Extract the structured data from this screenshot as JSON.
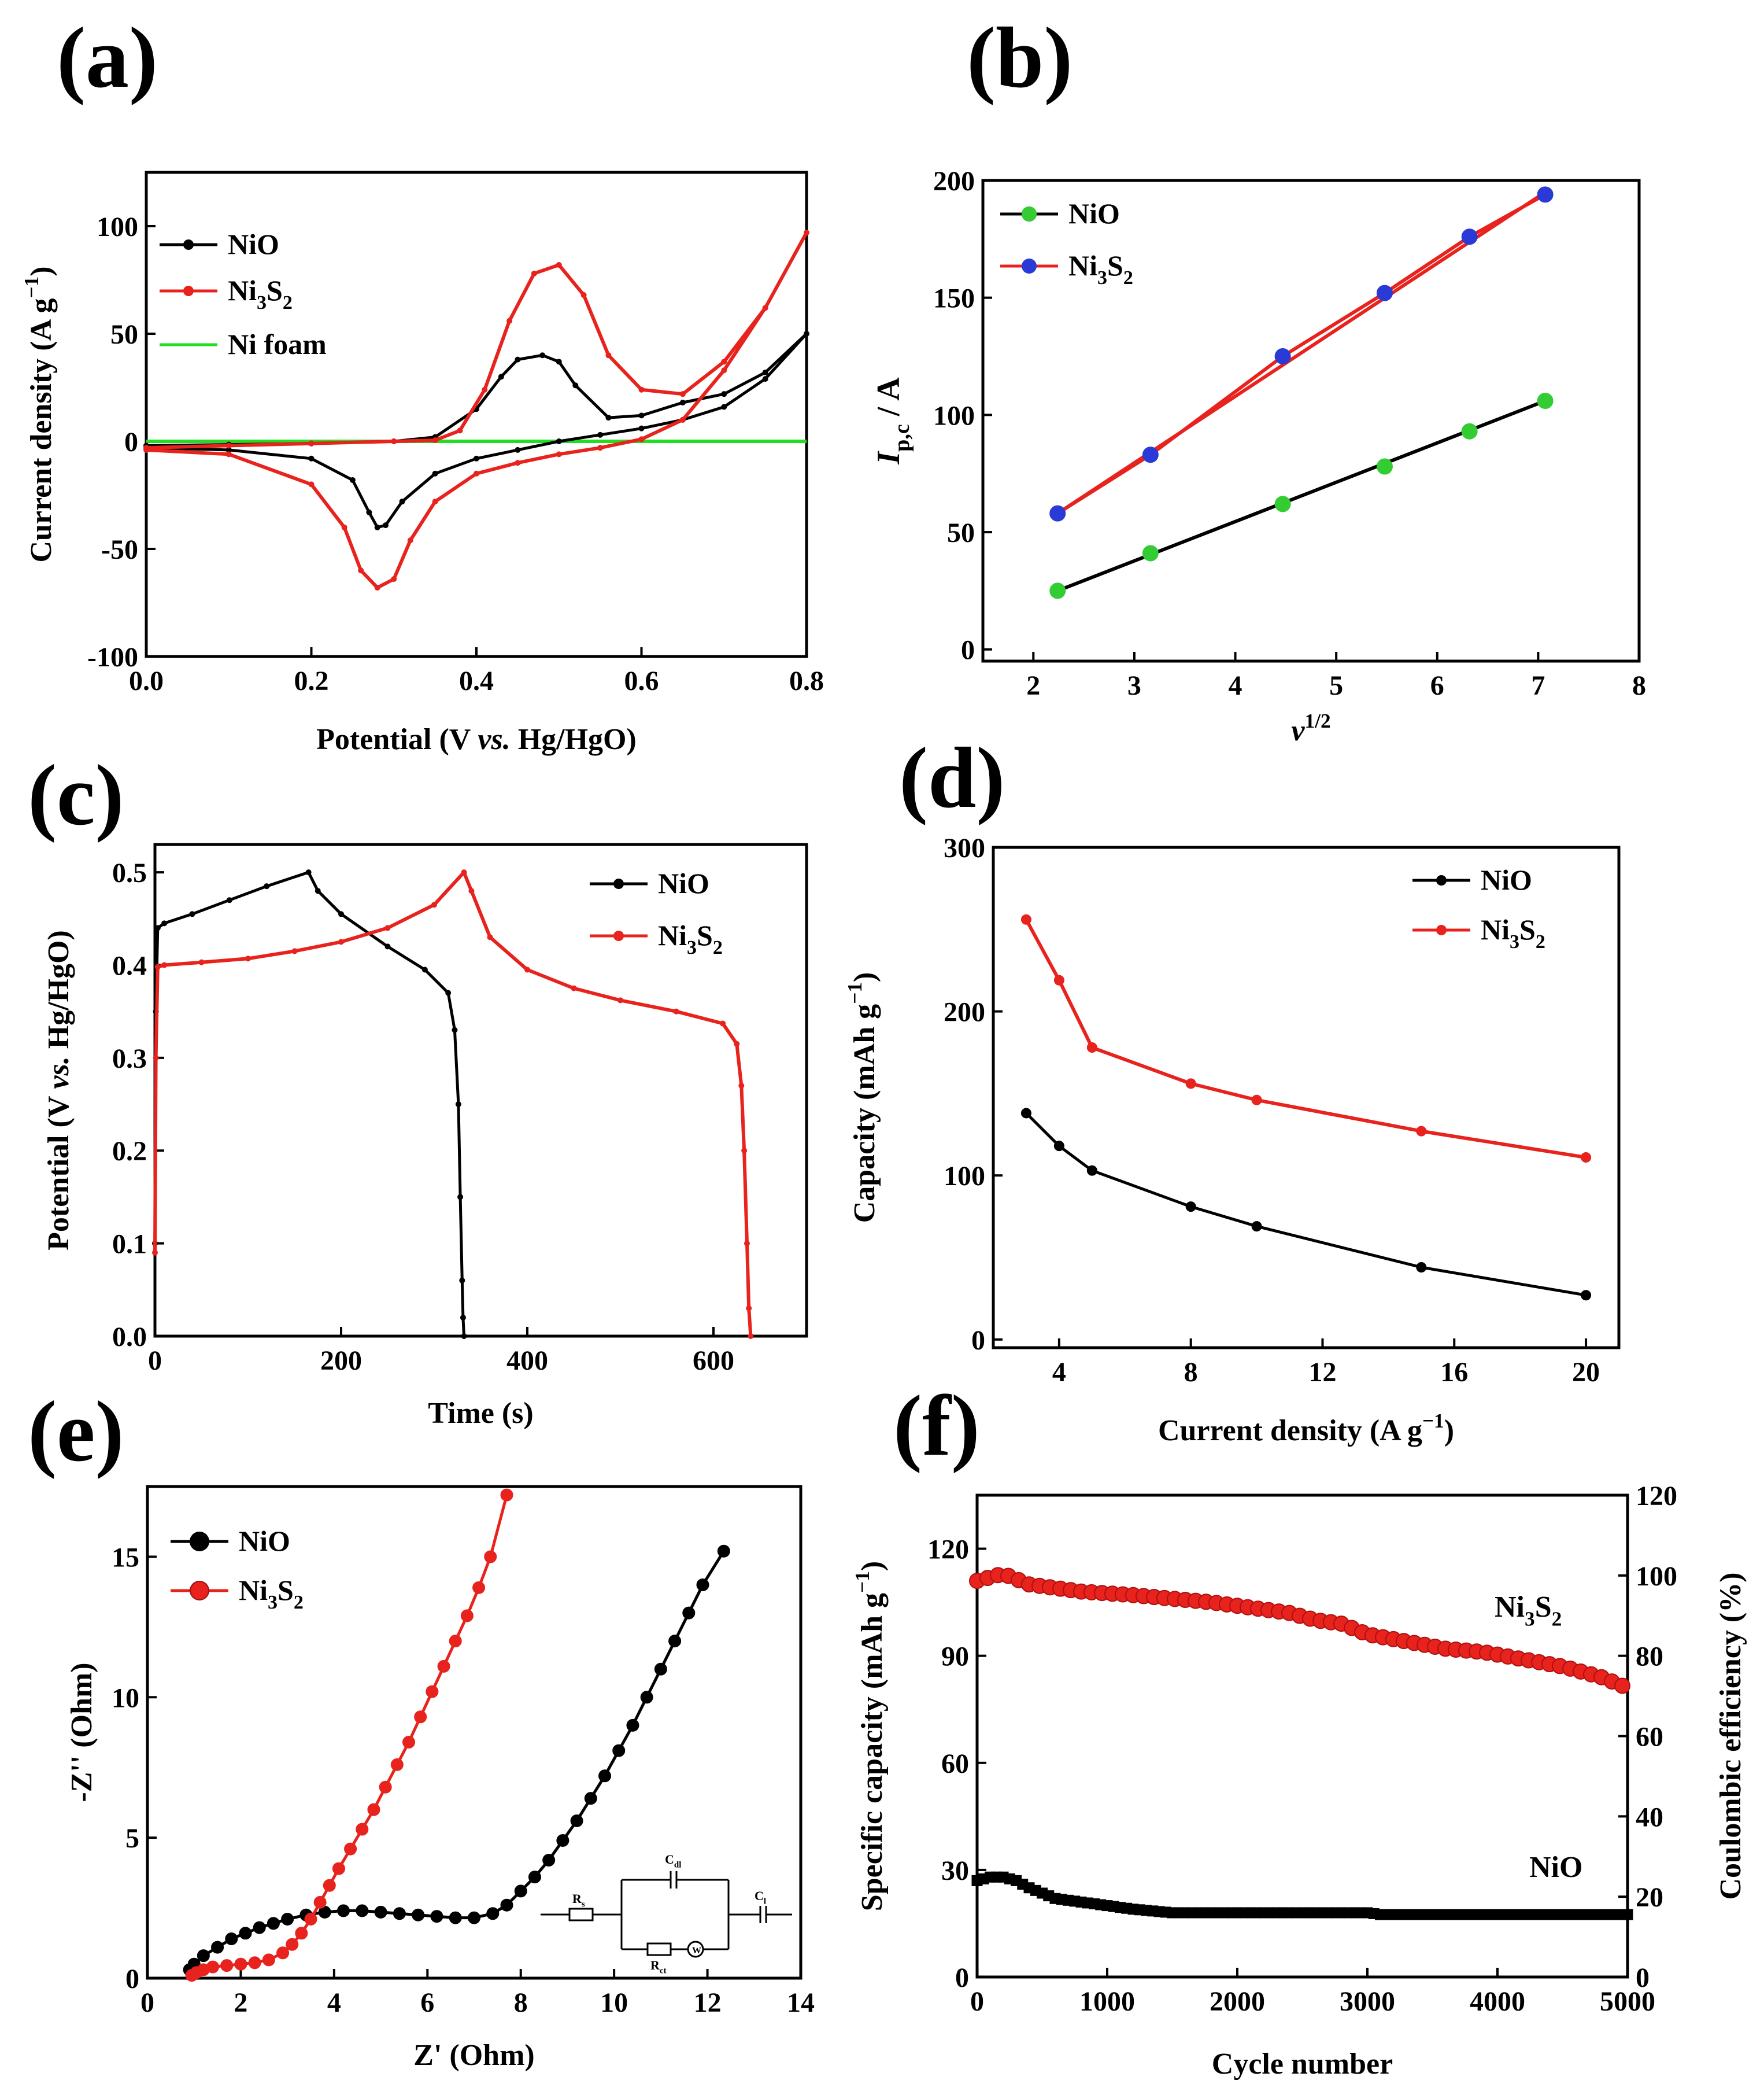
{
  "colors": {
    "nio": "#000000",
    "ni3s2": "#e8221c",
    "foam": "#22dd22",
    "nio_marker_b": "#33cc33",
    "ni3s2_marker_b": "#2a3ad6"
  },
  "chart_data": [
    {
      "panel": "(a)",
      "type": "line",
      "xlabel": "Potential (V vs. Hg/HgO)",
      "ylabel": "Current density (A g⁻¹)",
      "xlim": [
        0,
        0.8
      ],
      "ylim": [
        -100,
        125
      ],
      "xticks": [
        "0.0",
        "0.2",
        "0.4",
        "0.6",
        "0.8"
      ],
      "yticks": [
        "-100",
        "-50",
        "0",
        "50",
        "100"
      ],
      "legend": {
        "position": "top-left",
        "entries": [
          "NiO",
          "Ni₃S₂",
          "Ni foam"
        ]
      },
      "series": [
        {
          "name": "NiO",
          "x": [
            0,
            0.1,
            0.2,
            0.25,
            0.27,
            0.28,
            0.29,
            0.31,
            0.35,
            0.4,
            0.45,
            0.5,
            0.55,
            0.6,
            0.65,
            0.7,
            0.75,
            0.8,
            0.75,
            0.7,
            0.65,
            0.6,
            0.56,
            0.52,
            0.5,
            0.48,
            0.45,
            0.43,
            0.4,
            0.35,
            0.3,
            0.2,
            0.1,
            0
          ],
          "y": [
            -3,
            -4,
            -8,
            -18,
            -33,
            -40,
            -39,
            -28,
            -15,
            -8,
            -4,
            0,
            3,
            6,
            10,
            16,
            29,
            50,
            32,
            22,
            18,
            12,
            11,
            26,
            37,
            40,
            38,
            30,
            15,
            2,
            0,
            -1,
            -1.5,
            -2
          ]
        },
        {
          "name": "Ni3S2",
          "x": [
            0,
            0.1,
            0.2,
            0.24,
            0.26,
            0.28,
            0.3,
            0.32,
            0.35,
            0.4,
            0.45,
            0.5,
            0.55,
            0.6,
            0.65,
            0.7,
            0.75,
            0.8,
            0.75,
            0.7,
            0.65,
            0.6,
            0.56,
            0.53,
            0.5,
            0.47,
            0.44,
            0.41,
            0.38,
            0.35,
            0.3,
            0.2,
            0.1,
            0
          ],
          "y": [
            -4,
            -6,
            -20,
            -40,
            -60,
            -68,
            -64,
            -46,
            -28,
            -15,
            -10,
            -6,
            -3,
            1,
            10,
            33,
            62,
            97,
            62,
            37,
            22,
            24,
            40,
            68,
            82,
            78,
            56,
            24,
            5,
            0.5,
            0,
            -1,
            -2,
            -3
          ]
        },
        {
          "name": "Ni foam",
          "x": [
            0,
            0.8
          ],
          "y": [
            0,
            0
          ]
        }
      ]
    },
    {
      "panel": "(b)",
      "type": "scatter",
      "xlabel": "v^1/2",
      "ylabel": "I_p,c / A",
      "xlim": [
        1.5,
        8
      ],
      "ylim": [
        -5,
        200
      ],
      "xticks": [
        "2",
        "3",
        "4",
        "5",
        "6",
        "7",
        "8"
      ],
      "yticks": [
        "0",
        "50",
        "100",
        "150",
        "200"
      ],
      "legend": {
        "position": "top-left",
        "entries": [
          "NiO",
          "Ni₃S₂"
        ]
      },
      "series": [
        {
          "name": "NiO",
          "x": [
            2.24,
            3.16,
            4.47,
            5.48,
            6.32,
            7.07
          ],
          "y": [
            25,
            41,
            62,
            78,
            93,
            106
          ],
          "fit": [
            [
              2.24,
              25
            ],
            [
              7.07,
              106
            ]
          ]
        },
        {
          "name": "Ni3S2",
          "x": [
            2.24,
            3.16,
            4.47,
            5.48,
            6.32,
            7.07
          ],
          "y": [
            58,
            83,
            125,
            152,
            176,
            194
          ],
          "fit": [
            [
              2.24,
              58
            ],
            [
              7.07,
              195
            ]
          ]
        }
      ]
    },
    {
      "panel": "(c)",
      "type": "line",
      "xlabel": "Time (s)",
      "ylabel": "Potential (V vs. Hg/HgO)",
      "xlim": [
        0,
        700
      ],
      "ylim": [
        0,
        0.53
      ],
      "xticks": [
        "0",
        "200",
        "400",
        "600"
      ],
      "yticks": [
        "0.0",
        "0.1",
        "0.2",
        "0.3",
        "0.4",
        "0.5"
      ],
      "legend": {
        "position": "top-right",
        "entries": [
          "NiO",
          "Ni₃S₂"
        ]
      },
      "series": [
        {
          "name": "NiO",
          "x": [
            0,
            1,
            3,
            10,
            40,
            80,
            120,
            165,
            175,
            200,
            250,
            290,
            315,
            322,
            326,
            328,
            330,
            331,
            332
          ],
          "y": [
            0.1,
            0.35,
            0.44,
            0.445,
            0.455,
            0.47,
            0.485,
            0.5,
            0.48,
            0.455,
            0.42,
            0.395,
            0.37,
            0.33,
            0.25,
            0.15,
            0.06,
            0.02,
            0
          ]
        },
        {
          "name": "Ni3S2",
          "x": [
            0,
            1,
            3,
            10,
            50,
            100,
            150,
            200,
            250,
            300,
            332,
            340,
            360,
            400,
            450,
            500,
            560,
            610,
            625,
            630,
            633,
            636,
            638,
            640
          ],
          "y": [
            0.09,
            0.3,
            0.398,
            0.4,
            0.403,
            0.407,
            0.415,
            0.425,
            0.44,
            0.465,
            0.5,
            0.48,
            0.43,
            0.395,
            0.375,
            0.362,
            0.35,
            0.337,
            0.315,
            0.27,
            0.2,
            0.1,
            0.03,
            0
          ]
        }
      ]
    },
    {
      "panel": "(d)",
      "type": "line",
      "xlabel": "Current density (A g⁻¹)",
      "ylabel": "Capacity (mAh g⁻¹)",
      "xlim": [
        2,
        21
      ],
      "ylim": [
        -5,
        300
      ],
      "xticks": [
        "4",
        "8",
        "12",
        "16",
        "20"
      ],
      "yticks": [
        "0",
        "100",
        "200",
        "300"
      ],
      "legend": {
        "position": "top-right",
        "entries": [
          "NiO",
          "Ni₃S₂"
        ]
      },
      "series": [
        {
          "name": "NiO",
          "x": [
            3,
            4,
            5,
            8,
            10,
            15,
            20
          ],
          "y": [
            138,
            118,
            103,
            81,
            69,
            44,
            27
          ]
        },
        {
          "name": "Ni3S2",
          "x": [
            3,
            4,
            5,
            8,
            10,
            15,
            20
          ],
          "y": [
            256,
            219,
            178,
            156,
            146,
            127,
            111
          ]
        }
      ]
    },
    {
      "panel": "(e)",
      "type": "line",
      "xlabel": "Z' (Ohm)",
      "ylabel": "-Z'' (Ohm)",
      "xlim": [
        0,
        14
      ],
      "ylim": [
        0,
        17.5
      ],
      "xticks": [
        "0",
        "2",
        "4",
        "6",
        "8",
        "10",
        "12",
        "14"
      ],
      "yticks": [
        "0",
        "5",
        "10",
        "15"
      ],
      "legend": {
        "position": "top-left",
        "entries": [
          "NiO",
          "Ni₃S₂"
        ]
      },
      "inset_labels": {
        "rs": "Rs",
        "cdl": "Cdl",
        "rct": "Rct",
        "w": "W",
        "cl": "Cl"
      },
      "series": [
        {
          "name": "NiO",
          "x": [
            0.9,
            1.0,
            1.2,
            1.5,
            1.8,
            2.1,
            2.4,
            2.7,
            3.0,
            3.4,
            3.8,
            4.2,
            4.6,
            5.0,
            5.4,
            5.8,
            6.2,
            6.6,
            7.0,
            7.4,
            7.7,
            8.0,
            8.3,
            8.6,
            8.9,
            9.2,
            9.5,
            9.8,
            10.1,
            10.4,
            10.7,
            11.0,
            11.3,
            11.6,
            11.9,
            12.35
          ],
          "y": [
            0.3,
            0.5,
            0.8,
            1.1,
            1.4,
            1.6,
            1.8,
            1.95,
            2.1,
            2.25,
            2.35,
            2.4,
            2.4,
            2.35,
            2.3,
            2.25,
            2.2,
            2.15,
            2.15,
            2.3,
            2.6,
            3.1,
            3.6,
            4.2,
            4.9,
            5.6,
            6.4,
            7.2,
            8.1,
            9.0,
            10.0,
            11.0,
            12.0,
            13.0,
            14.0,
            15.2
          ]
        },
        {
          "name": "Ni3S2",
          "x": [
            0.95,
            1.05,
            1.2,
            1.4,
            1.7,
            2.0,
            2.3,
            2.6,
            2.9,
            3.1,
            3.3,
            3.5,
            3.7,
            3.9,
            4.1,
            4.35,
            4.6,
            4.85,
            5.1,
            5.35,
            5.6,
            5.85,
            6.1,
            6.35,
            6.6,
            6.85,
            7.1,
            7.35,
            7.7
          ],
          "y": [
            0.1,
            0.2,
            0.3,
            0.4,
            0.45,
            0.5,
            0.55,
            0.65,
            0.9,
            1.2,
            1.6,
            2.1,
            2.7,
            3.3,
            3.9,
            4.6,
            5.3,
            6.0,
            6.8,
            7.6,
            8.4,
            9.3,
            10.2,
            11.1,
            12.0,
            12.9,
            13.9,
            15.0,
            17.2
          ]
        }
      ]
    },
    {
      "panel": "(f)",
      "type": "scatter",
      "xlabel": "Cycle number",
      "ylabel": "Specific capacity (mAh g⁻¹)",
      "ylabel_right": "Coulombic  efficiency (%)",
      "xlim": [
        0,
        5000
      ],
      "ylim": [
        0,
        135
      ],
      "ylim_right": [
        0,
        120
      ],
      "xticks": [
        "0",
        "1000",
        "2000",
        "3000",
        "4000",
        "5000"
      ],
      "yticks": [
        "0",
        "30",
        "60",
        "90",
        "120"
      ],
      "yticks_right": [
        "0",
        "20",
        "40",
        "60",
        "80",
        "100",
        "120"
      ],
      "annotations": [
        "Ni₃S₂",
        "NiO"
      ],
      "series": [
        {
          "name": "Ni3S2",
          "x": [
            0,
            200,
            400,
            600,
            800,
            1000,
            1200,
            1500,
            1800,
            2000,
            2200,
            2400,
            2600,
            2800,
            3000,
            3300,
            3600,
            3900,
            4200,
            4500,
            4800,
            5000
          ],
          "y": [
            111,
            113,
            110,
            109,
            108,
            107.5,
            107,
            106,
            105,
            104,
            103,
            102,
            100,
            99,
            96,
            94,
            92,
            91,
            89,
            87,
            84,
            81
          ]
        },
        {
          "name": "NiO",
          "x": [
            0,
            100,
            200,
            300,
            400,
            600,
            800,
            1000,
            1200,
            1500,
            2000,
            2500,
            3000,
            3100,
            3500,
            4000,
            4500,
            5000
          ],
          "y": [
            27,
            28,
            28,
            27,
            25,
            22,
            21,
            20,
            19,
            18,
            18,
            18,
            18,
            17.5,
            17.5,
            17.5,
            17.5,
            17.5
          ]
        }
      ]
    }
  ]
}
